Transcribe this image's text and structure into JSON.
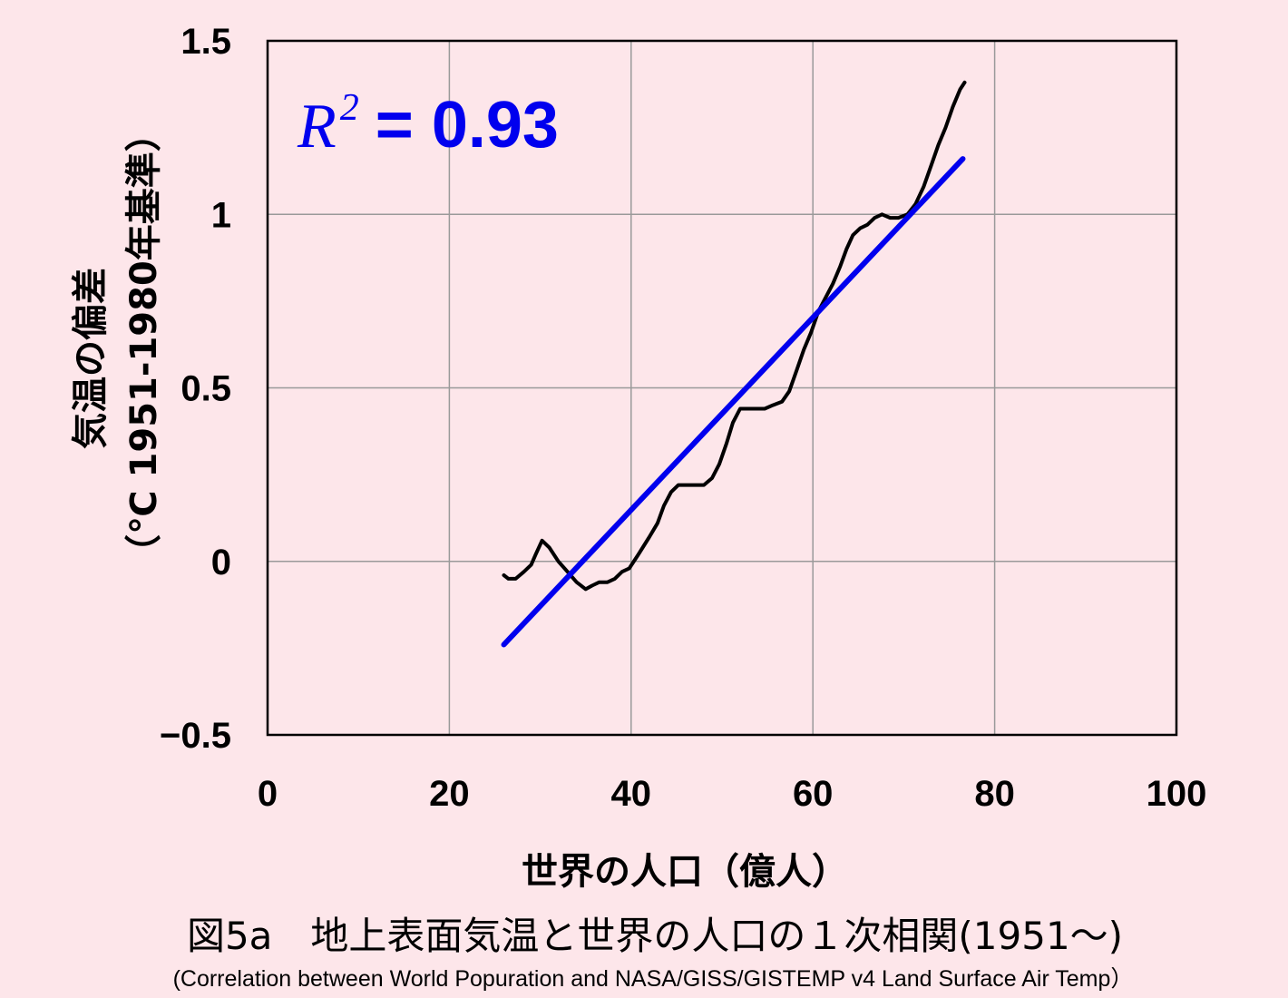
{
  "chart_data": {
    "type": "line",
    "xlabel": "世界の人口（億人）",
    "ylabel": "気温の偏差",
    "ylabel_unit": "（℃ 1951-1980年基準）",
    "xlim": [
      0,
      100
    ],
    "ylim": [
      -0.5,
      1.5
    ],
    "x_ticks": [
      "0",
      "20",
      "40",
      "60",
      "80",
      "100"
    ],
    "y_ticks": [
      "−0.5",
      "0",
      "0.5",
      "1",
      "1.5"
    ],
    "grid": true,
    "annotation": {
      "label": "R",
      "superscript": "2",
      "value": "= 0.93"
    },
    "colors": {
      "data": "#000000",
      "fit": "#0000ee",
      "background": "#fde6ea"
    },
    "series": [
      {
        "style": "line",
        "points": [
          [
            26,
            -0.04
          ],
          [
            26.5,
            -0.05
          ],
          [
            27.3,
            -0.05
          ],
          [
            28.2,
            -0.03
          ],
          [
            29.0,
            -0.01
          ],
          [
            29.5,
            0.02
          ],
          [
            30.2,
            0.06
          ],
          [
            31.0,
            0.04
          ],
          [
            32.0,
            0.0
          ],
          [
            33.0,
            -0.03
          ],
          [
            34.0,
            -0.06
          ],
          [
            35.0,
            -0.08
          ],
          [
            35.7,
            -0.07
          ],
          [
            36.5,
            -0.06
          ],
          [
            37.4,
            -0.06
          ],
          [
            38.2,
            -0.05
          ],
          [
            39.0,
            -0.03
          ],
          [
            39.8,
            -0.02
          ],
          [
            40.8,
            0.02
          ],
          [
            42.0,
            0.07
          ],
          [
            42.9,
            0.11
          ],
          [
            43.6,
            0.16
          ],
          [
            44.4,
            0.2
          ],
          [
            45.2,
            0.22
          ],
          [
            46.0,
            0.22
          ],
          [
            47.0,
            0.22
          ],
          [
            48.0,
            0.22
          ],
          [
            48.9,
            0.24
          ],
          [
            49.7,
            0.28
          ],
          [
            50.5,
            0.34
          ],
          [
            51.2,
            0.4
          ],
          [
            52.0,
            0.44
          ],
          [
            52.8,
            0.44
          ],
          [
            53.7,
            0.44
          ],
          [
            54.7,
            0.44
          ],
          [
            55.6,
            0.45
          ],
          [
            56.6,
            0.46
          ],
          [
            57.4,
            0.49
          ],
          [
            58.2,
            0.55
          ],
          [
            59.0,
            0.61
          ],
          [
            59.8,
            0.66
          ],
          [
            60.6,
            0.72
          ],
          [
            61.4,
            0.76
          ],
          [
            62.2,
            0.8
          ],
          [
            63.0,
            0.85
          ],
          [
            63.7,
            0.9
          ],
          [
            64.4,
            0.94
          ],
          [
            65.2,
            0.96
          ],
          [
            66.0,
            0.97
          ],
          [
            66.8,
            0.99
          ],
          [
            67.6,
            1.0
          ],
          [
            68.5,
            0.99
          ],
          [
            69.4,
            0.99
          ],
          [
            70.4,
            1.0
          ],
          [
            71.3,
            1.03
          ],
          [
            72.2,
            1.08
          ],
          [
            73.0,
            1.14
          ],
          [
            73.8,
            1.2
          ],
          [
            74.6,
            1.25
          ],
          [
            75.4,
            1.31
          ],
          [
            76.2,
            1.36
          ],
          [
            76.7,
            1.38
          ]
        ]
      },
      {
        "style": "fit",
        "points": [
          [
            26,
            -0.24
          ],
          [
            76.5,
            1.16
          ]
        ]
      }
    ]
  },
  "figure_caption": "図5a　地上表面気温と世界の人口の１次相関(1951～)",
  "figure_subcaption": "(Correlation between World Popuration and NASA/GISS/GISTEMP v4 Land Surface Air Temp）"
}
